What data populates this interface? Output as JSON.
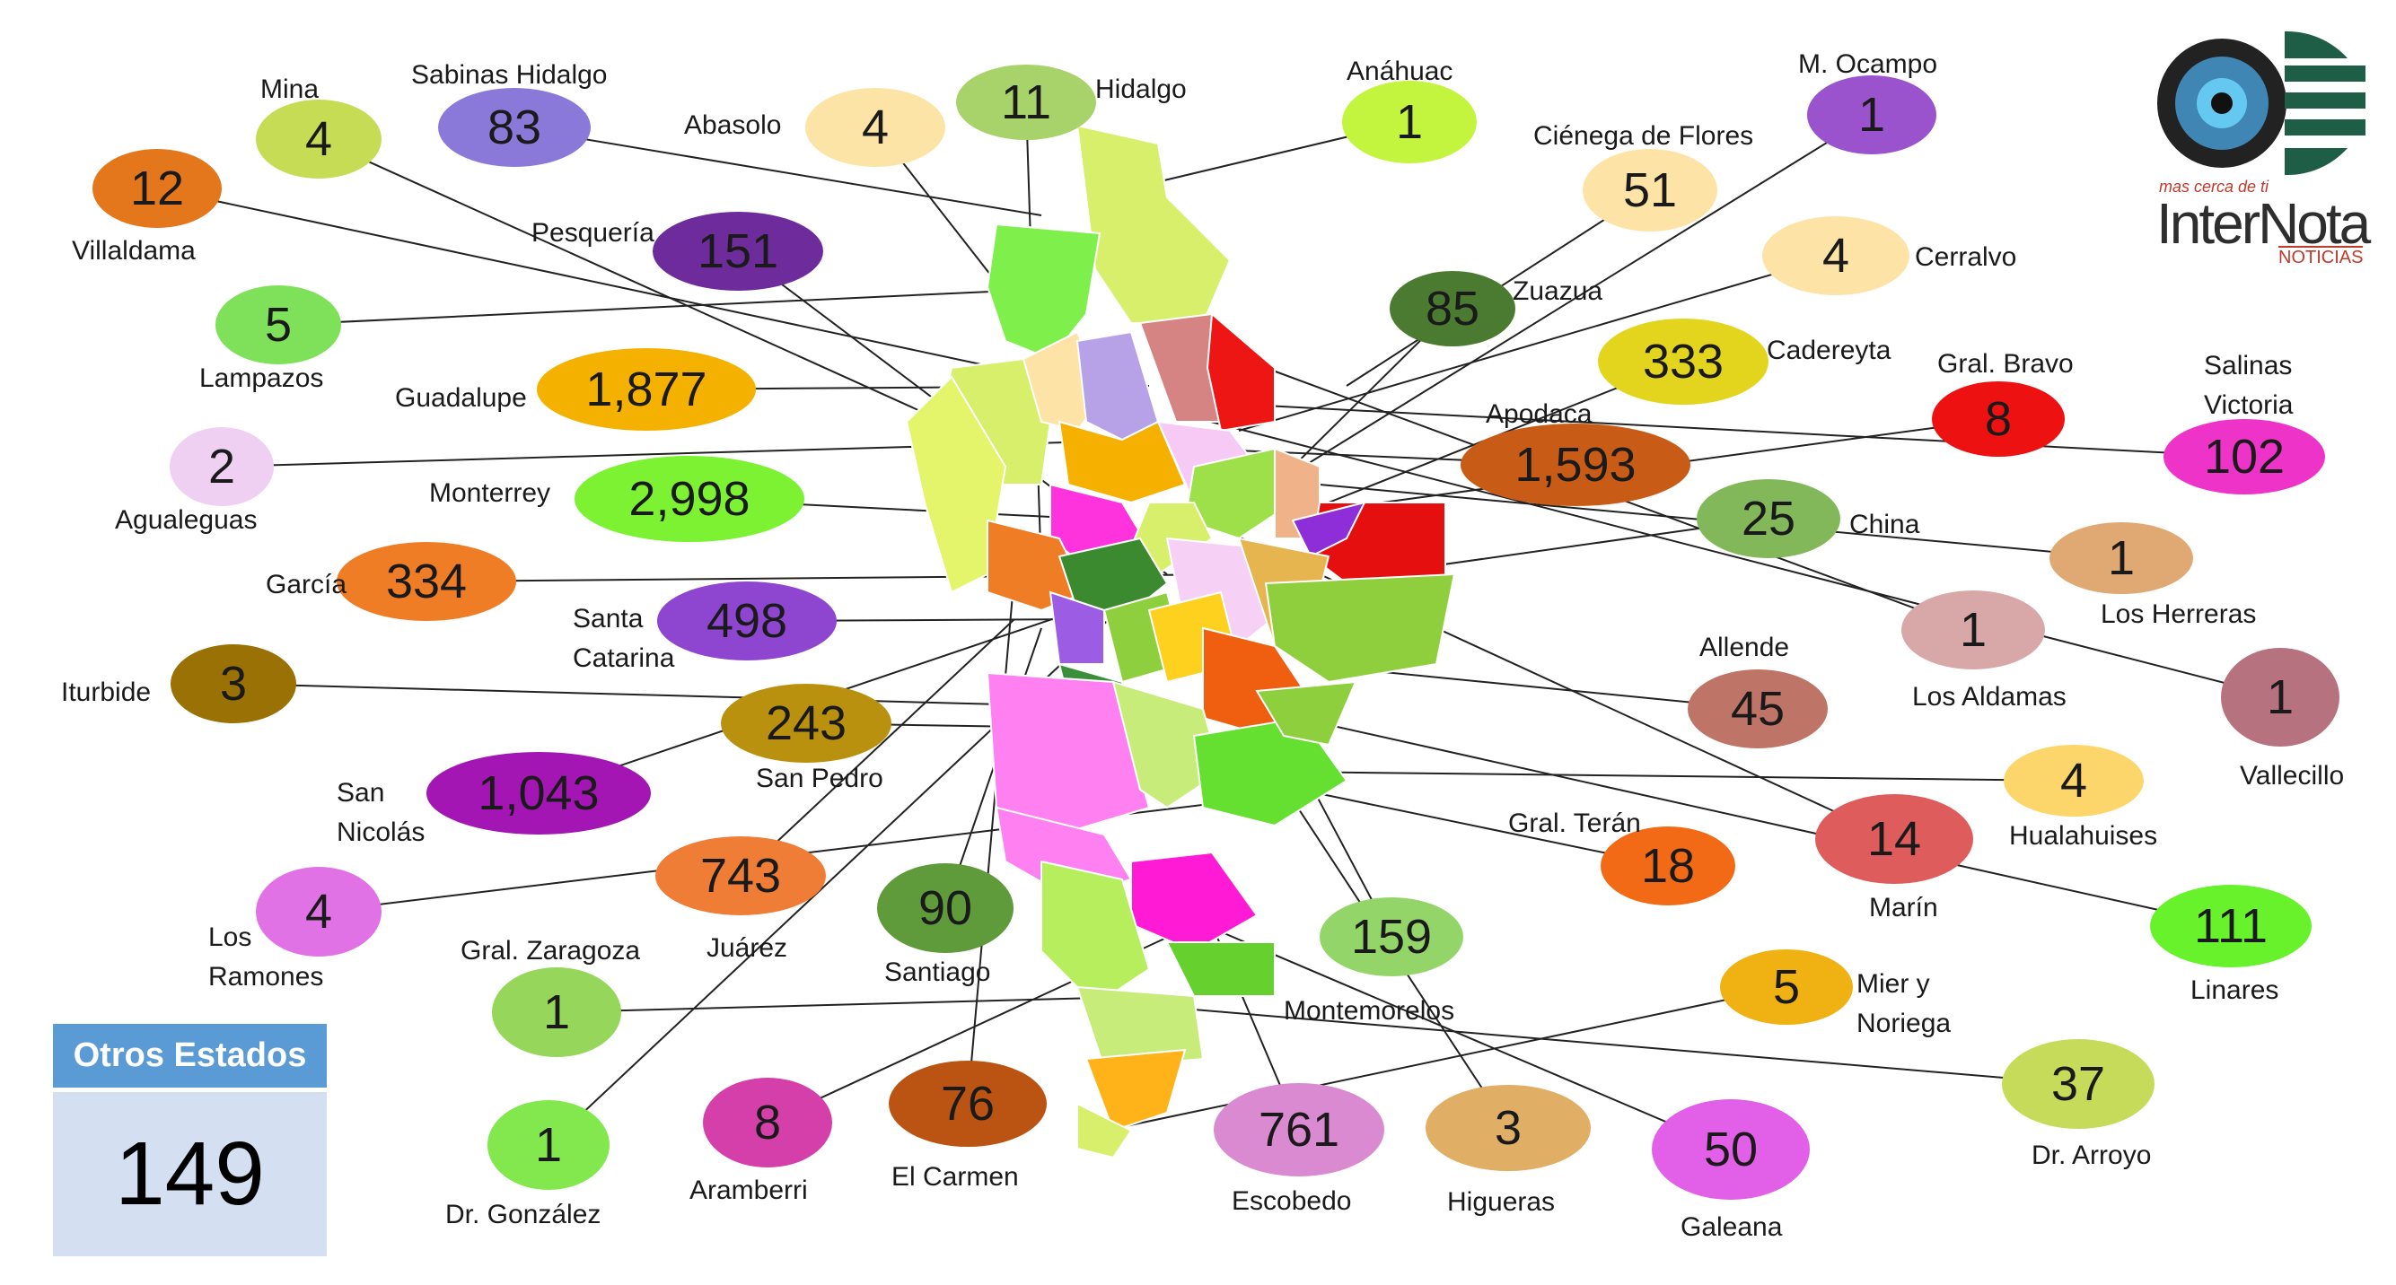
{
  "municipalities": [
    {
      "name": "Mina",
      "count": "4",
      "color": "#c6dc55"
    },
    {
      "name": "Sabinas Hidalgo",
      "count": "83",
      "color": "#8b79da"
    },
    {
      "name": "Villaldama",
      "count": "12",
      "color": "#e4761c"
    },
    {
      "name": "Lampazos",
      "count": "5",
      "color": "#7fe05a"
    },
    {
      "name": "Agualeguas",
      "count": "2",
      "color": "#f0d0f2"
    },
    {
      "name": "Abasolo",
      "count": "4",
      "color": "#fce4a6"
    },
    {
      "name": "Hidalgo",
      "count": "11",
      "color": "#a8d26a"
    },
    {
      "name": "Pesquería",
      "count": "151",
      "color": "#6d2b9b"
    },
    {
      "name": "Guadalupe",
      "count": "1,877",
      "color": "#f5b100"
    },
    {
      "name": "Monterrey",
      "count": "2,998",
      "color": "#7cf233"
    },
    {
      "name": "García",
      "count": "334",
      "color": "#ef7d26"
    },
    {
      "name": "Santa Catarina",
      "count": "498",
      "color": "#8e45d0"
    },
    {
      "name": "Iturbide",
      "count": "3",
      "color": "#9a7105"
    },
    {
      "name": "San Pedro",
      "count": "243",
      "color": "#b9910f"
    },
    {
      "name": "San Nicolás",
      "count": "1,043",
      "color": "#a316b4"
    },
    {
      "name": "Juárez",
      "count": "743",
      "color": "#ef7d36"
    },
    {
      "name": "Los Ramones",
      "count": "4",
      "color": "#e072e6"
    },
    {
      "name": "Gral. Zaragoza",
      "count": "1",
      "color": "#96d65a"
    },
    {
      "name": "Santiago",
      "count": "90",
      "color": "#5f9b3a"
    },
    {
      "name": "Montemorelos",
      "count": "159",
      "color": "#94d56a"
    },
    {
      "name": "Dr. González",
      "count": "1",
      "color": "#82e84e"
    },
    {
      "name": "Aramberri",
      "count": "8",
      "color": "#d53faa"
    },
    {
      "name": "El Carmen",
      "count": "76",
      "color": "#bb5313"
    },
    {
      "name": "Escobedo",
      "count": "761",
      "color": "#d98ad0"
    },
    {
      "name": "Higueras",
      "count": "3",
      "color": "#e1ae66"
    },
    {
      "name": "Galeana",
      "count": "50",
      "color": "#e25fe8"
    },
    {
      "name": "Anáhuac",
      "count": "1",
      "color": "#c3f43e"
    },
    {
      "name": "M. Ocampo",
      "count": "1",
      "color": "#9a52cd"
    },
    {
      "name": "Ciénega de Flores",
      "count": "51",
      "color": "#fde3a6"
    },
    {
      "name": "Cerralvo",
      "count": "4",
      "color": "#fde3a6"
    },
    {
      "name": "Zuazua",
      "count": "85",
      "color": "#4a7b30"
    },
    {
      "name": "Cadereyta",
      "count": "333",
      "color": "#e3d51e"
    },
    {
      "name": "Gral. Bravo",
      "count": "8",
      "color": "#ed1111"
    },
    {
      "name": "Salinas Victoria",
      "count": "102",
      "color": "#ee33c8"
    },
    {
      "name": "Apodaca",
      "count": "1,593",
      "color": "#c85c17"
    },
    {
      "name": "China",
      "count": "25",
      "color": "#82b85a"
    },
    {
      "name": "Los Herreras",
      "count": "1",
      "color": "#e0a873"
    },
    {
      "name": "Los Aldamas",
      "count": "1",
      "color": "#d8a8a8"
    },
    {
      "name": "Vallecillo",
      "count": "1",
      "color": "#b7727f"
    },
    {
      "name": "Allende",
      "count": "45",
      "color": "#be7466"
    },
    {
      "name": "Hualahuises",
      "count": "4",
      "color": "#fdd66b"
    },
    {
      "name": "Gral. Terán",
      "count": "18",
      "color": "#f36a16"
    },
    {
      "name": "Marín",
      "count": "14",
      "color": "#de5c5c"
    },
    {
      "name": "Linares",
      "count": "111",
      "color": "#68f22b"
    },
    {
      "name": "Mier y Noriega",
      "count": "5",
      "color": "#f0b112"
    },
    {
      "name": "Dr. Arroyo",
      "count": "37",
      "color": "#c7db5a"
    }
  ],
  "otros_estados": {
    "title": "Otros Estados",
    "count": "149"
  },
  "logo": {
    "tagline": "mas cerca de ti",
    "name": "InterNota",
    "sub": "NOTICIAS"
  }
}
